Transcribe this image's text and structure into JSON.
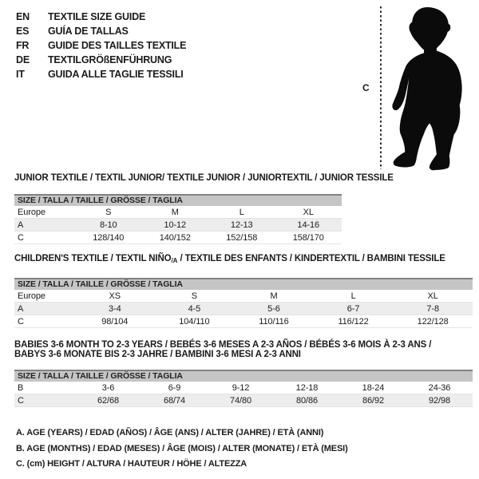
{
  "header": {
    "languages": [
      {
        "code": "EN",
        "title": "TEXTILE SIZE GUIDE"
      },
      {
        "code": "ES",
        "title": "GUÍA DE TALLAS"
      },
      {
        "code": "FR",
        "title": "GUIDE DES TAILLES TEXTILE"
      },
      {
        "code": "DE",
        "title": "TEXTILGRÖßENFÜHRUNG"
      },
      {
        "code": "IT",
        "title": "GUIDA ALLE TAGLIE TESSILI"
      }
    ]
  },
  "figure": {
    "icon": "baby-silhouette",
    "height_label": "C"
  },
  "sections": [
    {
      "title_lines": [
        [
          {
            "text": "JUNIOR TEXTILE / TEXTIL JUNIOR/ TEXTILE JUNIOR / JUNIORTEXTIL / JUNIOR TESSILE",
            "sub": false
          }
        ]
      ],
      "size_header": "SIZE / TALLA / TAILLE / GRÖSSE / TAGLIA",
      "rows": [
        {
          "label": "Europe",
          "shaded": false,
          "cells": [
            "S",
            "M",
            "L",
            "XL"
          ]
        },
        {
          "label": "A",
          "shaded": true,
          "cells": [
            "8-10",
            "10-12",
            "12-13",
            "14-16"
          ]
        },
        {
          "label": "C",
          "shaded": false,
          "cells": [
            "128/140",
            "140/152",
            "152/158",
            "158/170"
          ]
        }
      ]
    },
    {
      "title_lines": [
        [
          {
            "text": "CHILDREN'S TEXTILE / TEXTIL NIÑO",
            "sub": false
          },
          {
            "text": "/A",
            "sub": true
          },
          {
            "text": " / TEXTILE DES ENFANTS / KINDERTEXTIL / BAMBINI TESSILE",
            "sub": false
          }
        ]
      ],
      "size_header": "SIZE / TALLA / TAILLE / GRÖSSE / TAGLIA",
      "rows": [
        {
          "label": "Europe",
          "shaded": false,
          "cells": [
            "XS",
            "S",
            "M",
            "L",
            "XL"
          ]
        },
        {
          "label": "A",
          "shaded": true,
          "cells": [
            "3-4",
            "4-5",
            "5-6",
            "6-7",
            "7-8"
          ]
        },
        {
          "label": "C",
          "shaded": false,
          "cells": [
            "98/104",
            "104/110",
            "110/116",
            "116/122",
            "122/128"
          ]
        }
      ]
    },
    {
      "title_lines": [
        [
          {
            "text": "BABIES 3-6 MONTH TO 2-3 YEARS / BEBÉS 3-6 MESES A 2-3 AÑOS / BÉBÉS 3-6 MOIS À 2-3 ANS /",
            "sub": false
          }
        ],
        [
          {
            "text": "BABYS 3-6 MONATE BIS 2-3 JAHRE / BAMBINI 3-6 MESI A 2-3 ANNI",
            "sub": false
          }
        ]
      ],
      "size_header": "SIZE / TALLA / TAILLE / GRÖSSE / TAGLIA",
      "rows": [
        {
          "label": "B",
          "shaded": false,
          "cells": [
            "3-6",
            "6-9",
            "9-12",
            "12-18",
            "18-24",
            "24-36"
          ]
        },
        {
          "label": "C",
          "shaded": true,
          "cells": [
            "62/68",
            "68/74",
            "74/80",
            "80/86",
            "86/92",
            "92/98"
          ]
        }
      ]
    }
  ],
  "notes": [
    "A. AGE (YEARS) / EDAD (AÑOS) / ÂGE (ANS) / ALTER (JAHRE) / ETÀ (ANNI)",
    "B. AGE (MONTHS) / EDAD (MESES) / ÂGE (MOIS) / ALTER (MONATE) / ETÀ (MESI)",
    "C. (cm) HEIGHT / ALTURA / HAUTEUR / HÖHE / ALTEZZA"
  ],
  "colors": {
    "bar_background": "#c5c5c5",
    "bar_top_border": "#828282",
    "shaded_row": "#ededed",
    "text": "#1b1b1b"
  }
}
